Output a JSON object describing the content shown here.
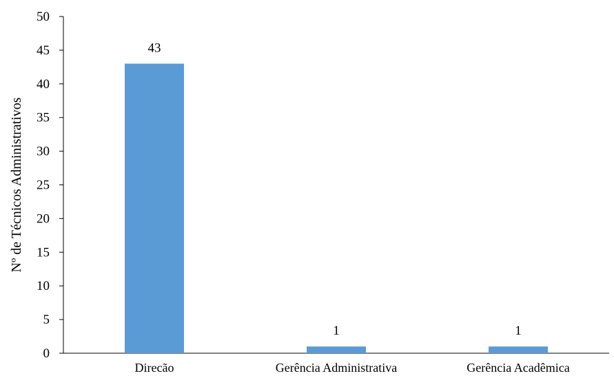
{
  "chart_data": {
    "type": "bar",
    "categories": [
      "Direcão",
      "Gerência Administrativa",
      "Gerência Acadêmica"
    ],
    "values": [
      43,
      1,
      1
    ],
    "data_labels": [
      "43",
      "1",
      "1"
    ],
    "title": "",
    "xlabel": "",
    "ylabel": "Nº de Técnicos Administrativos",
    "ylim": [
      0,
      50
    ],
    "yticks": [
      "0",
      "5",
      "10",
      "15",
      "20",
      "25",
      "30",
      "35",
      "40",
      "45",
      "50"
    ],
    "grid": false,
    "legend": "none",
    "bar_color": "#5B9BD5"
  }
}
